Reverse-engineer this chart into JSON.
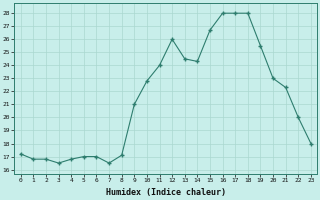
{
  "x": [
    0,
    1,
    2,
    3,
    4,
    5,
    6,
    7,
    8,
    9,
    10,
    11,
    12,
    13,
    14,
    15,
    16,
    17,
    18,
    19,
    20,
    21,
    22,
    23
  ],
  "y": [
    17.2,
    16.8,
    16.8,
    16.5,
    16.8,
    17.0,
    17.0,
    16.5,
    17.1,
    21.0,
    22.8,
    24.0,
    26.0,
    24.5,
    24.3,
    26.7,
    28.0,
    28.0,
    28.0,
    25.5,
    23.0,
    22.3,
    20.0,
    18.0
  ],
  "line_color": "#2e7d6e",
  "marker_color": "#2e7d6e",
  "bg_color": "#c8eeea",
  "grid_color": "#aad8d0",
  "xlabel": "Humidex (Indice chaleur)",
  "ylabel_ticks": [
    16,
    17,
    18,
    19,
    20,
    21,
    22,
    23,
    24,
    25,
    26,
    27,
    28
  ],
  "ylim": [
    15.7,
    28.8
  ],
  "xlim": [
    -0.5,
    23.5
  ]
}
